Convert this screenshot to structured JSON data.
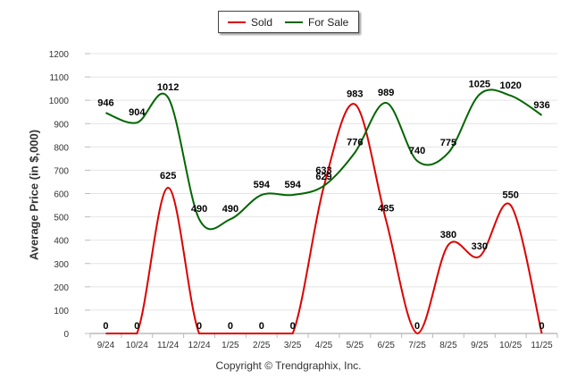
{
  "chart_data": {
    "type": "line",
    "categories": [
      "9/24",
      "10/24",
      "11/24",
      "12/24",
      "1/25",
      "2/25",
      "3/25",
      "4/25",
      "5/25",
      "6/25",
      "7/25",
      "8/25",
      "9/25",
      "10/25",
      "11/25"
    ],
    "series": [
      {
        "name": "Sold",
        "color": "#dd0000",
        "values": [
          0,
          0,
          625,
          0,
          0,
          0,
          0,
          629,
          983,
          485,
          0,
          380,
          330,
          550,
          0
        ]
      },
      {
        "name": "For Sale",
        "color": "#006600",
        "values": [
          946,
          904,
          1012,
          490,
          490,
          594,
          594,
          633,
          776,
          989,
          740,
          775,
          1025,
          1020,
          936
        ]
      }
    ],
    "ylabel": "Average Price (in $,000)",
    "ylim": [
      0,
      1200
    ],
    "yticks": [
      0,
      100,
      200,
      300,
      400,
      500,
      600,
      700,
      800,
      900,
      1000,
      1100,
      1200
    ],
    "data_labels": {
      "Sold": [
        "0",
        "0",
        "625",
        "0",
        "0",
        "0",
        "0",
        "629",
        "983",
        "485",
        "0",
        "380",
        "330",
        "550",
        "0"
      ],
      "For Sale": [
        "946",
        "904",
        "1012",
        "490",
        "490",
        "594",
        "594",
        "633",
        "776",
        "989",
        "740",
        "775",
        "1025",
        "1020",
        "936"
      ]
    },
    "grid": true,
    "legend_position": "top-center"
  },
  "footer": "Copyright © Trendgraphix, Inc."
}
